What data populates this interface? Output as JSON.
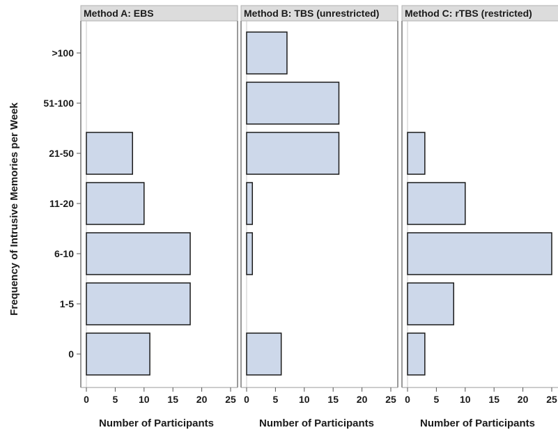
{
  "chart_data": {
    "type": "bar",
    "orientation": "horizontal",
    "ylabel": "Frequency of Intrusive Memories per Week",
    "xlabel": "Number of Participants",
    "categories": [
      "0",
      "1-5",
      "6-10",
      "11-20",
      "21-50",
      "51-100",
      ">100"
    ],
    "xlim": [
      0,
      25
    ],
    "xticks": [
      "0",
      "5",
      "10",
      "15",
      "20",
      "25"
    ],
    "bar_color": "#cdd8ea",
    "bar_edge_color": "#1a1a1a",
    "strip_color": "#dcdcdc",
    "grid": false,
    "panels": [
      {
        "title": "Method A: EBS",
        "xlabel": "Number of Participants",
        "values": [
          11,
          18,
          18,
          10,
          8,
          0,
          0
        ]
      },
      {
        "title": "Method B: TBS (unrestricted)",
        "xlabel": "Number of Participants",
        "values": [
          6,
          0,
          1,
          1,
          16,
          16,
          7
        ]
      },
      {
        "title": "Method C: rTBS (restricted)",
        "xlabel": "Number of Participants",
        "values": [
          3,
          8,
          25,
          10,
          3,
          0,
          0
        ]
      }
    ]
  }
}
